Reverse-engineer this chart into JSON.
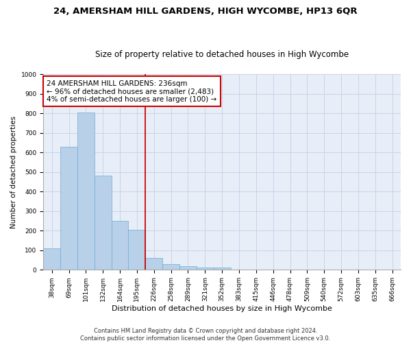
{
  "title": "24, AMERSHAM HILL GARDENS, HIGH WYCOMBE, HP13 6QR",
  "subtitle": "Size of property relative to detached houses in High Wycombe",
  "xlabel": "Distribution of detached houses by size in High Wycombe",
  "ylabel": "Number of detached properties",
  "bar_values": [
    110,
    630,
    805,
    480,
    250,
    205,
    60,
    30,
    20,
    13,
    12,
    0,
    0,
    0,
    0,
    0,
    0,
    0,
    0,
    0,
    0
  ],
  "bar_labels": [
    "38sqm",
    "69sqm",
    "101sqm",
    "132sqm",
    "164sqm",
    "195sqm",
    "226sqm",
    "258sqm",
    "289sqm",
    "321sqm",
    "352sqm",
    "383sqm",
    "415sqm",
    "446sqm",
    "478sqm",
    "509sqm",
    "540sqm",
    "572sqm",
    "603sqm",
    "635sqm",
    "666sqm"
  ],
  "bar_color": "#b8d0e8",
  "bar_edge_color": "#6baed6",
  "bar_width": 1.0,
  "vline_x": 6.0,
  "annotation_line1": "24 AMERSHAM HILL GARDENS: 236sqm",
  "annotation_line2": "← 96% of detached houses are smaller (2,483)",
  "annotation_line3": "4% of semi-detached houses are larger (100) →",
  "annotation_box_color": "#ffffff",
  "annotation_border_color": "#cc0000",
  "vline_color": "#cc0000",
  "ylim": [
    0,
    1000
  ],
  "yticks": [
    0,
    100,
    200,
    300,
    400,
    500,
    600,
    700,
    800,
    900,
    1000
  ],
  "grid_color": "#c8d4e8",
  "background_color": "#e8eef8",
  "footer_line1": "Contains HM Land Registry data © Crown copyright and database right 2024.",
  "footer_line2": "Contains public sector information licensed under the Open Government Licence v3.0.",
  "title_fontsize": 9.5,
  "subtitle_fontsize": 8.5,
  "xlabel_fontsize": 8,
  "ylabel_fontsize": 7.5,
  "tick_fontsize": 6.5,
  "annotation_fontsize": 7.5,
  "footer_fontsize": 6
}
